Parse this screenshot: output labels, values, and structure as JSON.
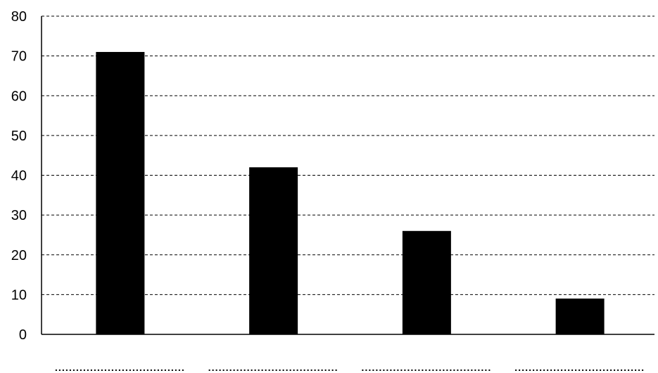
{
  "chart_data": {
    "type": "bar",
    "categories": [
      "",
      "",
      "",
      ""
    ],
    "values": [
      71,
      42,
      26,
      9
    ],
    "title": "",
    "xlabel": "",
    "ylabel": "",
    "ylim": [
      0,
      80
    ],
    "yticks": [
      "0",
      "10",
      "20",
      "30",
      "40",
      "50",
      "60",
      "70",
      "80"
    ],
    "grid": true,
    "bar_color": "#000000",
    "category_placeholder": "dotted-line"
  }
}
